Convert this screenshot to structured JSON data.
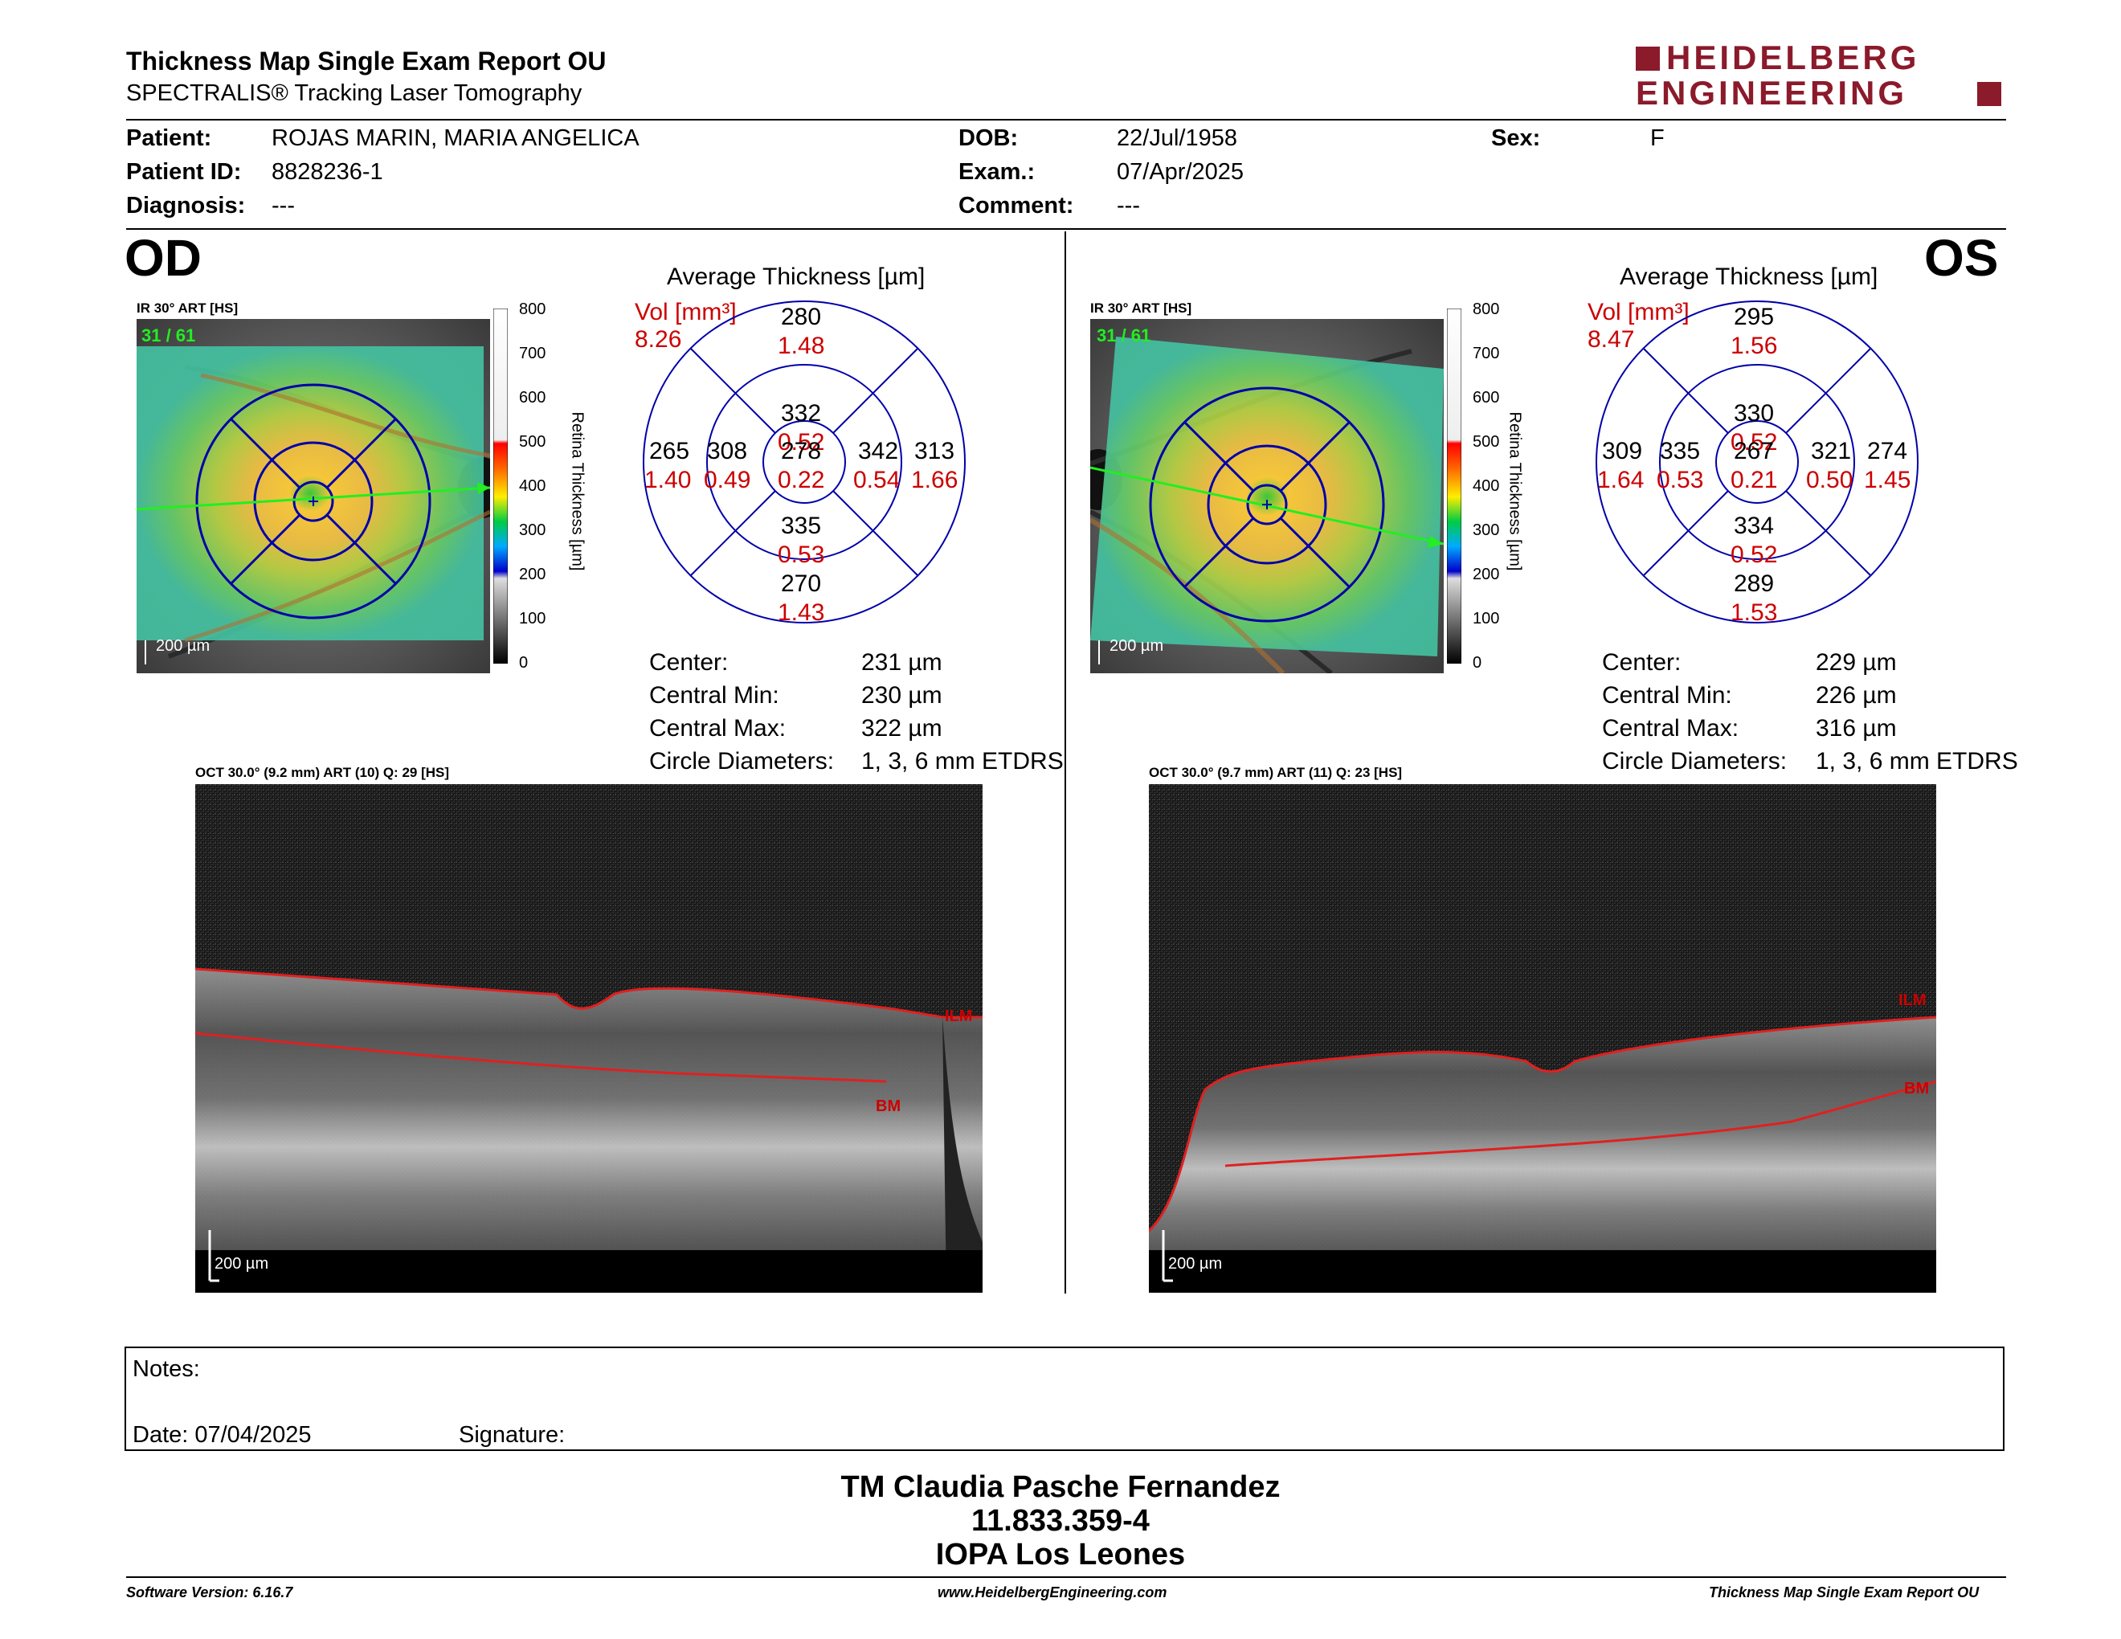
{
  "header": {
    "title": "Thickness Map Single Exam Report OU",
    "subtitle": "SPECTRALIS® Tracking Laser Tomography",
    "logo_line1": "HEIDELBERG",
    "logo_line2": "ENGINEERING"
  },
  "patient": {
    "patient_label": "Patient:",
    "patient_value": "ROJAS MARIN, MARIA ANGELICA",
    "id_label": "Patient ID:",
    "id_value": "8828236-1",
    "diagnosis_label": "Diagnosis:",
    "diagnosis_value": "---",
    "dob_label": "DOB:",
    "dob_value": "22/Jul/1958",
    "exam_label": "Exam.:",
    "exam_value": "07/Apr/2025",
    "comment_label": "Comment:",
    "comment_value": "---",
    "sex_label": "Sex:",
    "sex_value": "F"
  },
  "colorbar": {
    "ticks": [
      "800",
      "700",
      "600",
      "500",
      "400",
      "300",
      "200",
      "100",
      "0"
    ],
    "axis_label": "Retina  Thickness [µm]"
  },
  "od": {
    "eye_label": "OD",
    "ir_label": "IR 30° ART [HS]",
    "frame_counter": "31 / 61",
    "scale_label": "200 µm",
    "avg_title": "Average Thickness [µm]",
    "vol_label": "Vol [mm³]",
    "vol_value": "8.26",
    "sectors": {
      "center": {
        "t": "278",
        "v": "0.22"
      },
      "inner_sup": {
        "t": "332",
        "v": "0.52"
      },
      "inner_nas": {
        "t": "308",
        "v": "0.49"
      },
      "inner_tmp": {
        "t": "342",
        "v": "0.54"
      },
      "inner_inf": {
        "t": "335",
        "v": "0.53"
      },
      "outer_sup": {
        "t": "280",
        "v": "1.48"
      },
      "outer_nas": {
        "t": "265",
        "v": "1.40"
      },
      "outer_tmp": {
        "t": "313",
        "v": "1.66"
      },
      "outer_inf": {
        "t": "270",
        "v": "1.43"
      }
    },
    "center_label": "Center:",
    "center_value": "231 µm",
    "cmin_label": "Central Min:",
    "cmin_value": "230 µm",
    "cmax_label": "Central Max:",
    "cmax_value": "322 µm",
    "circ_label": "Circle Diameters:",
    "circ_value": "1, 3, 6 mm ETDRS",
    "oct_label": "OCT 30.0° (9.2 mm) ART (10) Q: 29 [HS]",
    "oct_scale": "200 µm",
    "ilm_label": "ILM",
    "bm_label": "BM"
  },
  "os": {
    "eye_label": "OS",
    "ir_label": "IR 30° ART [HS]",
    "frame_counter": "31 / 61",
    "scale_label": "200 µm",
    "avg_title": "Average Thickness [µm]",
    "vol_label": "Vol [mm³]",
    "vol_value": "8.47",
    "sectors": {
      "center": {
        "t": "267",
        "v": "0.21"
      },
      "inner_sup": {
        "t": "330",
        "v": "0.52"
      },
      "inner_nas": {
        "t": "335",
        "v": "0.53"
      },
      "inner_tmp": {
        "t": "321",
        "v": "0.50"
      },
      "inner_inf": {
        "t": "334",
        "v": "0.52"
      },
      "outer_sup": {
        "t": "295",
        "v": "1.56"
      },
      "outer_nas": {
        "t": "309",
        "v": "1.64"
      },
      "outer_tmp": {
        "t": "274",
        "v": "1.45"
      },
      "outer_inf": {
        "t": "289",
        "v": "1.53"
      }
    },
    "center_label": "Center:",
    "center_value": "229 µm",
    "cmin_label": "Central Min:",
    "cmin_value": "226 µm",
    "cmax_label": "Central Max:",
    "cmax_value": "316 µm",
    "circ_label": "Circle Diameters:",
    "circ_value": "1, 3, 6 mm ETDRS",
    "oct_label": "OCT 30.0° (9.7 mm) ART (11) Q: 23 [HS]",
    "oct_scale": "200 µm",
    "ilm_label": "ILM",
    "bm_label": "BM"
  },
  "notes": {
    "notes_label": "Notes:",
    "date_label": "Date: 07/04/2025",
    "signature_label": "Signature:"
  },
  "signature": {
    "line1": "TM Claudia Pasche Fernandez",
    "line2": "11.833.359-4",
    "line3": "IOPA Los Leones"
  },
  "footer": {
    "software": "Software Version: 6.16.7",
    "website": "www.HeidelbergEngineering.com",
    "report": "Thickness Map Single Exam Report OU"
  },
  "colors": {
    "accent_red": "#8b1a2b",
    "vol_red": "#cc0000",
    "grid_blue": "#0000aa"
  }
}
